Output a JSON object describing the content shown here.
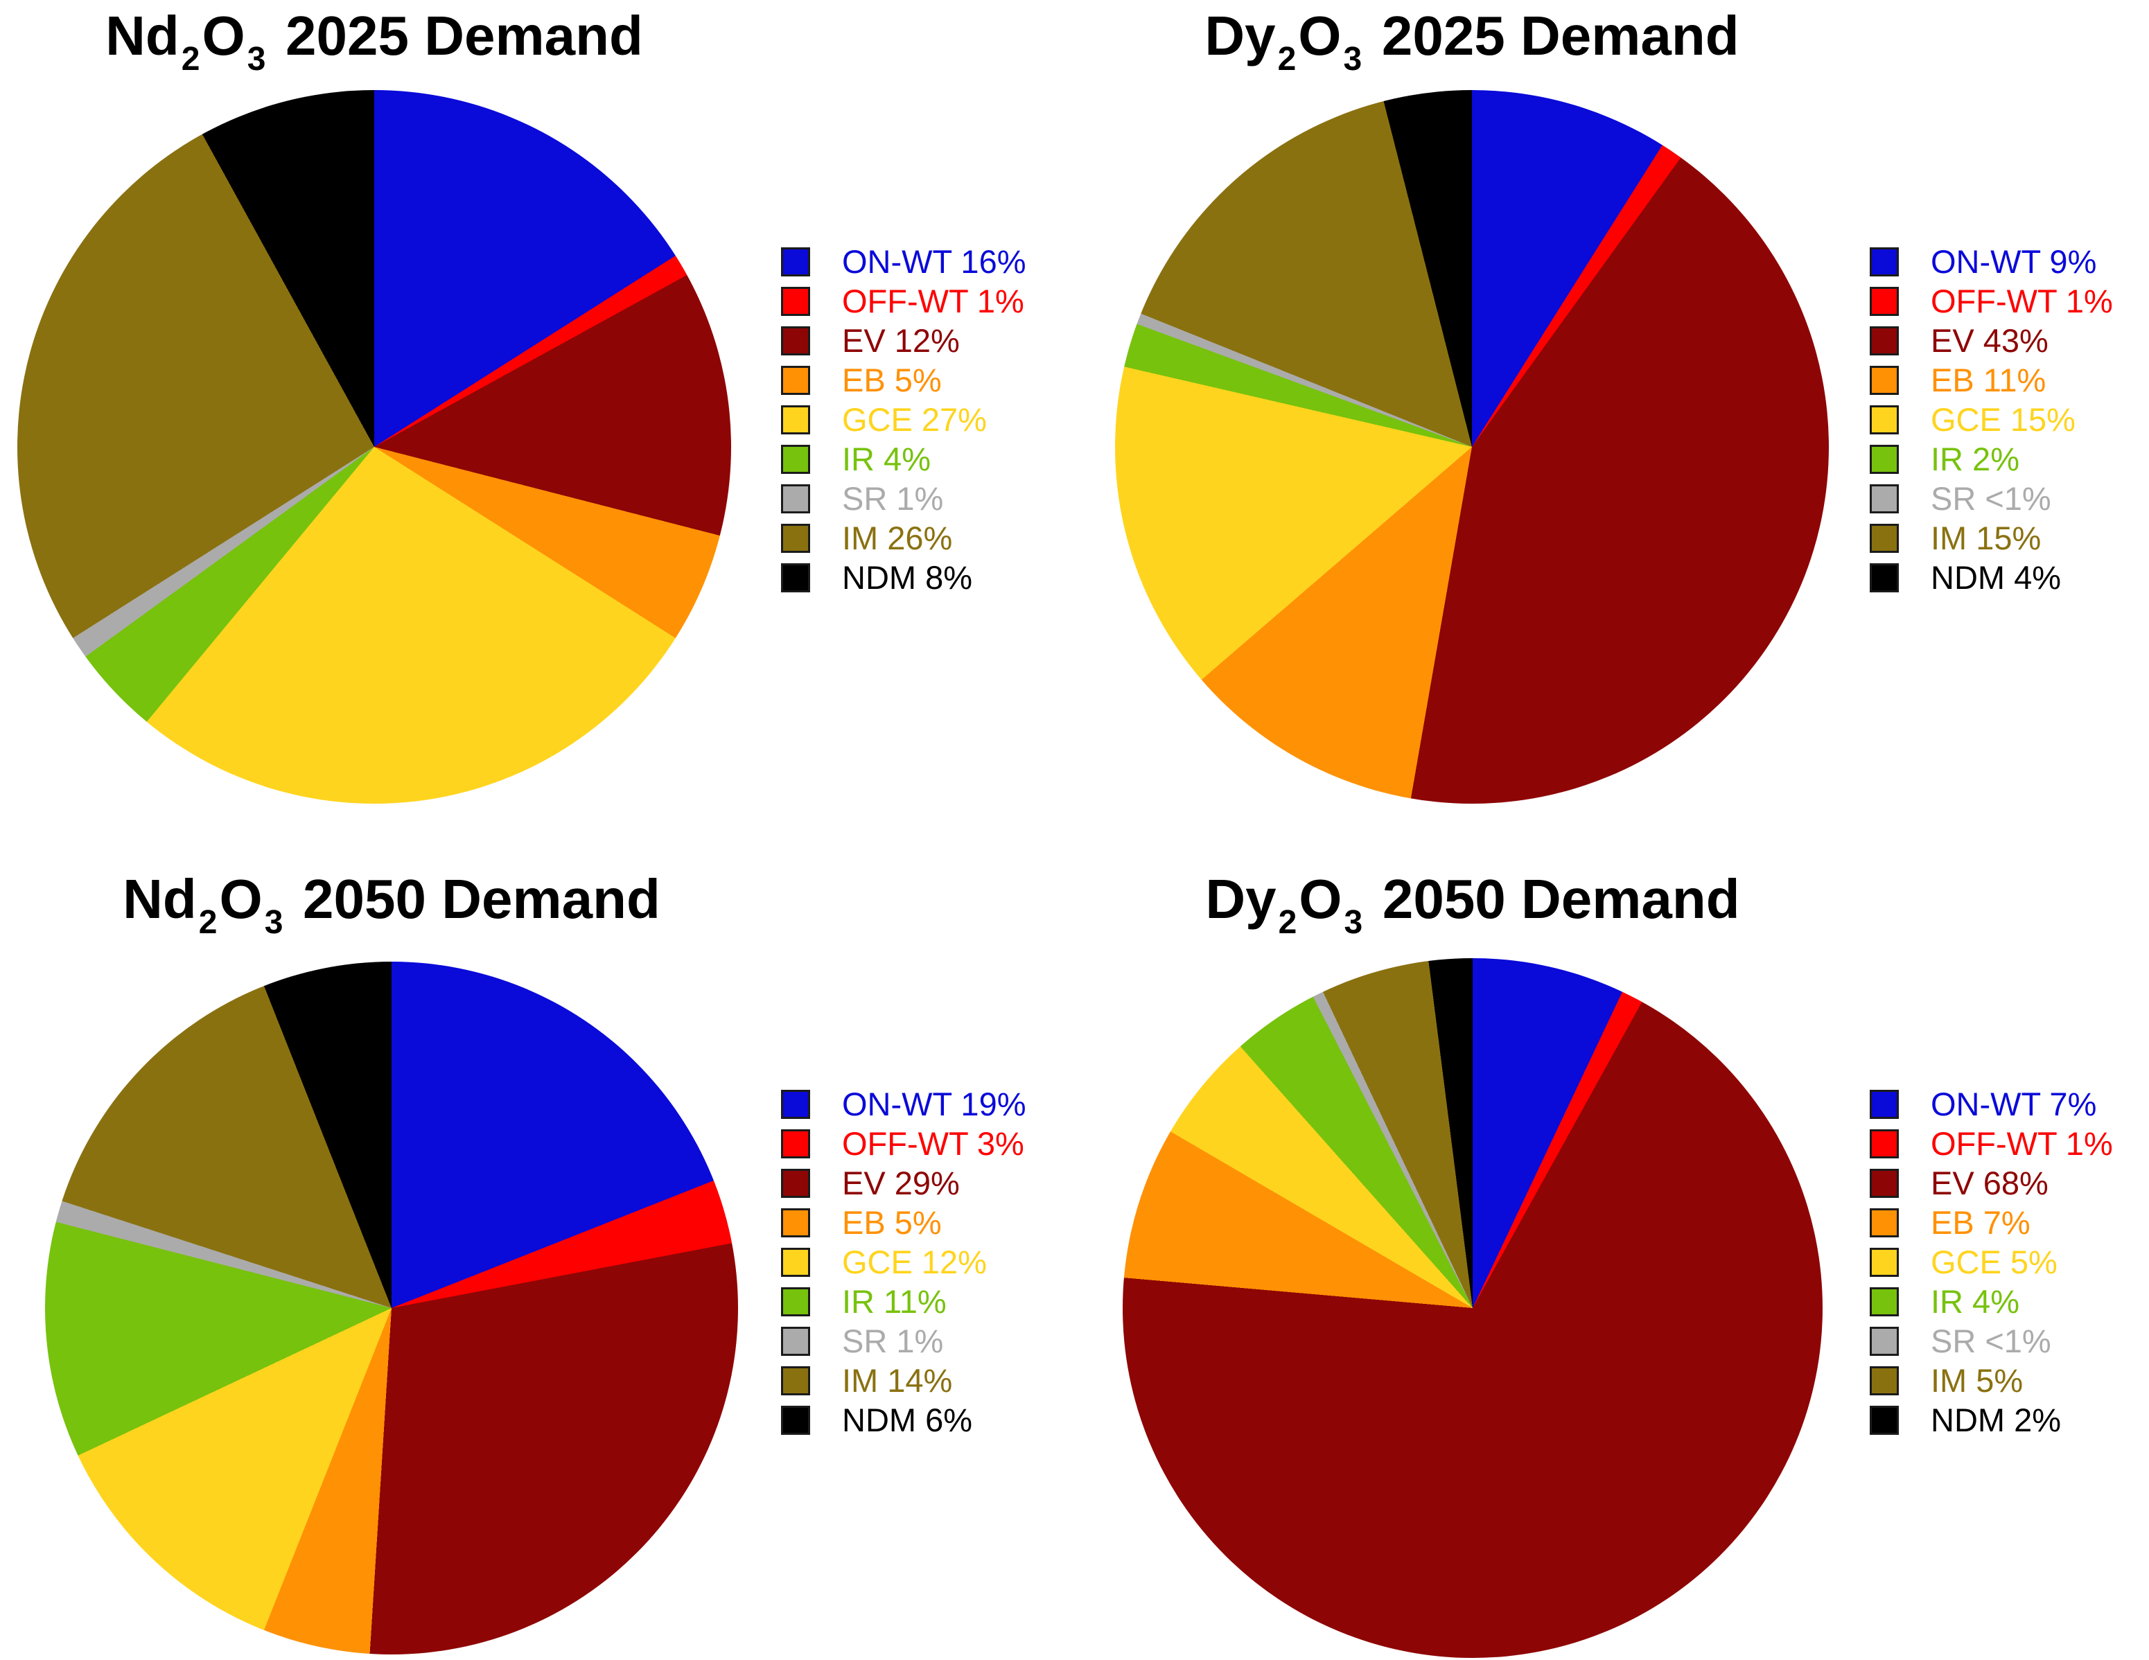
{
  "page": {
    "background": "#FFFFFF",
    "title_color": "#000000",
    "swatch_border": "#1B1B1B"
  },
  "palette": {
    "on_wt": "#0A0AD9",
    "off_wt": "#FE0000",
    "ev": "#8E0505",
    "eb": "#FF9105",
    "gce": "#FFD41E",
    "ir": "#77C20D",
    "sr": "#ABABAB",
    "im": "#8A7110",
    "ndm": "#000000"
  },
  "chart_data": [
    {
      "type": "pie",
      "title": "Nd2O3 2025 Demand",
      "title_parts": {
        "f1": "Nd",
        "s1": "2",
        "f2": "O",
        "s2": "3",
        "rest": "2025 Demand"
      },
      "legend_position": "right",
      "start_angle_deg": 0,
      "direction": "clockwise",
      "slices": [
        {
          "label": "ON-WT",
          "text": "ON-WT 16%",
          "value": 16,
          "color": "#0A0AD9"
        },
        {
          "label": "OFF-WT",
          "text": "OFF-WT 1%",
          "value": 1,
          "color": "#FE0000"
        },
        {
          "label": "EV",
          "text": "EV 12%",
          "value": 12,
          "color": "#8E0505"
        },
        {
          "label": "EB",
          "text": "EB 5%",
          "value": 5,
          "color": "#FF9105"
        },
        {
          "label": "GCE",
          "text": "GCE 27%",
          "value": 27,
          "color": "#FFD41E"
        },
        {
          "label": "IR",
          "text": "IR 4%",
          "value": 4,
          "color": "#77C20D"
        },
        {
          "label": "SR",
          "text": "SR 1%",
          "value": 1,
          "color": "#ABABAB"
        },
        {
          "label": "IM",
          "text": "IM 26%",
          "value": 26,
          "color": "#8A7110"
        },
        {
          "label": "NDM",
          "text": "NDM 8%",
          "value": 8,
          "color": "#000000"
        }
      ]
    },
    {
      "type": "pie",
      "title": "Dy2O3 2025 Demand",
      "title_parts": {
        "f1": "Dy",
        "s1": "2",
        "f2": "O",
        "s2": "3",
        "rest": "2025 Demand"
      },
      "legend_position": "right",
      "start_angle_deg": 0,
      "direction": "clockwise",
      "slices": [
        {
          "label": "ON-WT",
          "text": "ON-WT 9%",
          "value": 9,
          "color": "#0A0AD9"
        },
        {
          "label": "OFF-WT",
          "text": "OFF-WT 1%",
          "value": 1,
          "color": "#FE0000"
        },
        {
          "label": "EV",
          "text": "EV 43%",
          "value": 43,
          "color": "#8E0505"
        },
        {
          "label": "EB",
          "text": "EB 11%",
          "value": 11,
          "color": "#FF9105"
        },
        {
          "label": "GCE",
          "text": "GCE 15%",
          "value": 15,
          "color": "#FFD41E"
        },
        {
          "label": "IR",
          "text": "IR 2%",
          "value": 2,
          "color": "#77C20D"
        },
        {
          "label": "SR",
          "text": "SR <1%",
          "value": 0.5,
          "color": "#ABABAB"
        },
        {
          "label": "IM",
          "text": "IM 15%",
          "value": 15,
          "color": "#8A7110"
        },
        {
          "label": "NDM",
          "text": "NDM 4%",
          "value": 4,
          "color": "#000000"
        }
      ]
    },
    {
      "type": "pie",
      "title": "Nd2O3 2050 Demand",
      "title_parts": {
        "f1": "Nd",
        "s1": "2",
        "f2": "O",
        "s2": "3",
        "rest": "2050 Demand"
      },
      "legend_position": "right",
      "start_angle_deg": 0,
      "direction": "clockwise",
      "slices": [
        {
          "label": "ON-WT",
          "text": "ON-WT 19%",
          "value": 19,
          "color": "#0A0AD9"
        },
        {
          "label": "OFF-WT",
          "text": "OFF-WT 3%",
          "value": 3,
          "color": "#FE0000"
        },
        {
          "label": "EV",
          "text": "EV 29%",
          "value": 29,
          "color": "#8E0505"
        },
        {
          "label": "EB",
          "text": "EB 5%",
          "value": 5,
          "color": "#FF9105"
        },
        {
          "label": "GCE",
          "text": "GCE 12%",
          "value": 12,
          "color": "#FFD41E"
        },
        {
          "label": "IR",
          "text": "IR 11%",
          "value": 11,
          "color": "#77C20D"
        },
        {
          "label": "SR",
          "text": "SR 1%",
          "value": 1,
          "color": "#ABABAB"
        },
        {
          "label": "IM",
          "text": "IM 14%",
          "value": 14,
          "color": "#8A7110"
        },
        {
          "label": "NDM",
          "text": "NDM 6%",
          "value": 6,
          "color": "#000000"
        }
      ]
    },
    {
      "type": "pie",
      "title": "Dy2O3 2050 Demand",
      "title_parts": {
        "f1": "Dy",
        "s1": "2",
        "f2": "O",
        "s2": "3",
        "rest": "2050 Demand"
      },
      "legend_position": "right",
      "start_angle_deg": 0,
      "direction": "clockwise",
      "slices": [
        {
          "label": "ON-WT",
          "text": "ON-WT 7%",
          "value": 7,
          "color": "#0A0AD9"
        },
        {
          "label": "OFF-WT",
          "text": "OFF-WT 1%",
          "value": 1,
          "color": "#FE0000"
        },
        {
          "label": "EV",
          "text": "EV 68%",
          "value": 68,
          "color": "#8E0505"
        },
        {
          "label": "EB",
          "text": "EB 7%",
          "value": 7,
          "color": "#FF9105"
        },
        {
          "label": "GCE",
          "text": "GCE 5%",
          "value": 5,
          "color": "#FFD41E"
        },
        {
          "label": "IR",
          "text": "IR 4%",
          "value": 4,
          "color": "#77C20D"
        },
        {
          "label": "SR",
          "text": "SR <1%",
          "value": 0.5,
          "color": "#ABABAB"
        },
        {
          "label": "IM",
          "text": "IM 5%",
          "value": 5,
          "color": "#8A7110"
        },
        {
          "label": "NDM",
          "text": "NDM 2%",
          "value": 2,
          "color": "#000000"
        }
      ]
    }
  ]
}
